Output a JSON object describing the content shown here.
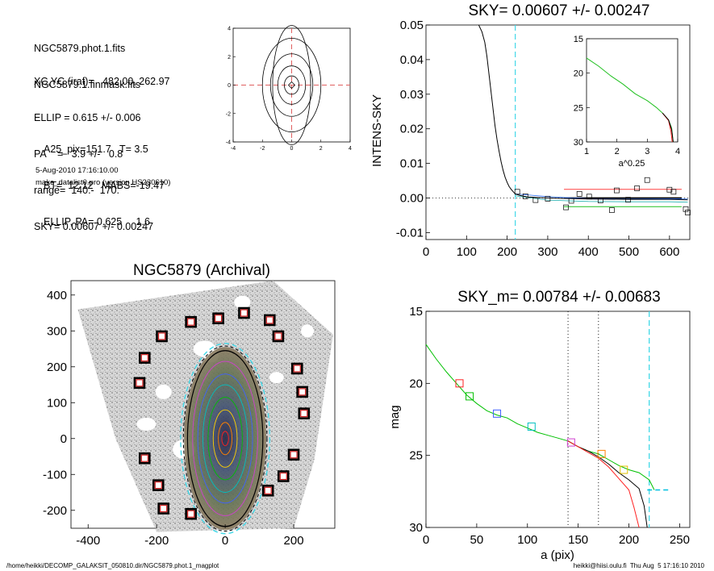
{
  "header_info": {
    "lines_a": [
      "NGC5879.phot.1.fits",
      "NGC5879.1.finmask.fits"
    ],
    "lines_b": [
      "XC,YC (iraf)=   482.00, 262.97",
      "ELLIP = 0.615 +/- 0.006",
      "PA    =   3.9 +/-   0.8",
      "range=  140.-  170.",
      "SKY= 0.00607 +/- 0.00247"
    ],
    "lines_c": [
      "A25_pix=151.7   T= 3.5",
      "BT=  12.12   MABS=-19.47",
      "ELLIP, PA= 0.625     1.6"
    ],
    "timestamp": "5-Aug-2010 17:16:10.00",
    "program": "make_datalist0.pro (version HS230610)"
  },
  "footer": {
    "path": "/home/heikki/DECOMP_GALAKSIT_050810.dir/NGC5879.phot.1_magplot",
    "user_time": "heikki@hiisi.oulu.fi  Thu Aug  5 17:16:10 2010"
  },
  "chart_data": [
    {
      "id": "contour_panel",
      "type": "contour",
      "title": "",
      "xlim": [
        -4,
        4
      ],
      "ylim": [
        -4,
        4
      ],
      "xticks": [
        "-4",
        "-2",
        "0",
        "2",
        "4"
      ],
      "yticks": [
        "-4",
        "-2",
        "0",
        "2",
        "4"
      ],
      "contour_levels_semi_axes": [
        [
          1.3,
          4.2
        ],
        [
          2.0,
          3.3
        ],
        [
          1.45,
          2.2
        ],
        [
          0.95,
          1.35
        ],
        [
          0.5,
          0.65
        ]
      ],
      "center_marker": [
        0,
        0
      ],
      "crosshair_color": "#e06060"
    },
    {
      "id": "sky_panel",
      "type": "line",
      "title": "SKY= 0.00607 +/- 0.00247",
      "xlabel": "",
      "ylabel": "INTENS-SKY",
      "xlim": [
        0,
        650
      ],
      "ylim": [
        -0.012,
        0.05
      ],
      "xticks": [
        "0",
        "100",
        "200",
        "300",
        "400",
        "500",
        "600"
      ],
      "yticks": [
        "-0.01",
        "0.00",
        "0.01",
        "0.02",
        "0.03",
        "0.04",
        "0.05"
      ],
      "profile": {
        "x": [
          130,
          138,
          145,
          150,
          155,
          160,
          165,
          170,
          175,
          180,
          185,
          190,
          195,
          200,
          205,
          210,
          215,
          220,
          230,
          250,
          300,
          400,
          500,
          600,
          645
        ],
        "y": [
          0.05,
          0.048,
          0.045,
          0.041,
          0.036,
          0.031,
          0.026,
          0.021,
          0.017,
          0.0135,
          0.0105,
          0.008,
          0.006,
          0.0045,
          0.0033,
          0.0025,
          0.0018,
          0.0012,
          0.0008,
          0.0003,
          0.0,
          -0.0003,
          -0.0004,
          -0.0004,
          -0.0005
        ]
      },
      "sky_boxes": {
        "x": [
          225,
          245,
          270,
          300,
          345,
          358,
          378,
          402,
          430,
          458,
          470,
          498,
          520,
          545,
          600,
          610,
          640,
          645
        ],
        "y": [
          0.0018,
          0.0005,
          -0.0006,
          -0.0002,
          -0.0027,
          -0.0008,
          0.0012,
          0.0004,
          -0.0007,
          -0.0035,
          0.0022,
          -0.0005,
          0.0028,
          0.0052,
          0.0024,
          0.0018,
          -0.0032,
          -0.0042
        ]
      },
      "sky_mean": 0.0,
      "sky_upper": 0.0025,
      "sky_lower": -0.0025,
      "range_marker_x": 220,
      "inset": {
        "xlabel": "a^0.25",
        "xlim": [
          1,
          4
        ],
        "ylim": [
          15,
          30
        ],
        "xticks": [
          "1",
          "2",
          "3",
          "4"
        ],
        "yticks": [
          "15",
          "20",
          "25",
          "30"
        ],
        "curve_x": [
          1.0,
          1.4,
          1.8,
          2.2,
          2.6,
          3.0,
          3.3,
          3.5,
          3.7,
          3.8,
          3.85
        ],
        "curve_y": [
          17.8,
          19.0,
          20.4,
          21.6,
          23.0,
          24.0,
          25.0,
          25.8,
          26.8,
          28.0,
          30.0
        ]
      }
    },
    {
      "id": "image_panel",
      "type": "image",
      "title": "NGC5879 (Archival)",
      "xlim": [
        -450,
        320
      ],
      "ylim": [
        -250,
        440
      ],
      "xticks": [
        "-400",
        "-200",
        "0",
        "200"
      ],
      "yticks": [
        "400",
        "300",
        "200",
        "100",
        "0",
        "-100",
        "-200"
      ],
      "sky_box_positions": {
        "x": [
          -100,
          -20,
          55,
          130,
          155,
          210,
          225,
          230,
          200,
          170,
          125,
          -185,
          -235,
          -250,
          -235,
          -195,
          -180,
          -100
        ],
        "y": [
          325,
          335,
          350,
          330,
          285,
          195,
          130,
          70,
          -45,
          -105,
          -145,
          285,
          225,
          155,
          -55,
          -130,
          -195,
          -210
        ]
      },
      "ellipse_semi_axes": [
        [
          110,
          245
        ],
        [
          95,
          215
        ],
        [
          80,
          180
        ],
        [
          65,
          150
        ],
        [
          50,
          115
        ],
        [
          35,
          80
        ],
        [
          20,
          45
        ],
        [
          10,
          20
        ]
      ],
      "ellipse_colors": [
        "#000000",
        "#d040d0",
        "#4060ff",
        "#00c0c0",
        "#00c000",
        "#ffd000",
        "#ff8000",
        "#ff2020"
      ]
    },
    {
      "id": "mag_panel",
      "type": "line",
      "title": "SKY_m=  0.00784 +/- 0.00683",
      "xlabel": "a (pix)",
      "ylabel": "mag",
      "xlim": [
        0,
        260
      ],
      "ylim": [
        15,
        30
      ],
      "xticks": [
        "0",
        "50",
        "100",
        "150",
        "200",
        "250"
      ],
      "yticks": [
        "15",
        "20",
        "25",
        "30"
      ],
      "range_lines_x": [
        140,
        170
      ],
      "sky_radius_x": 220,
      "series": [
        {
          "color": "#00c000",
          "x": [
            0,
            10,
            20,
            30,
            40,
            50,
            60,
            70,
            80,
            90,
            100,
            110,
            120,
            130,
            140,
            150,
            160,
            170,
            180,
            190,
            200,
            210,
            220,
            225
          ],
          "y": [
            17.3,
            18.3,
            19.2,
            20.0,
            20.8,
            21.4,
            21.9,
            22.2,
            22.4,
            22.8,
            23.1,
            23.4,
            23.6,
            23.8,
            24.0,
            24.4,
            24.7,
            24.9,
            25.3,
            25.7,
            26.0,
            26.2,
            26.7,
            27.4
          ]
        },
        {
          "color": "#000000",
          "x": [
            140,
            150,
            160,
            170,
            180,
            190,
            200,
            210,
            215,
            218
          ],
          "y": [
            24.0,
            24.4,
            24.7,
            25.1,
            25.6,
            26.2,
            26.7,
            27.3,
            28.5,
            30.0
          ]
        },
        {
          "color": "#ff2020",
          "x": [
            140,
            150,
            160,
            170,
            180,
            190,
            200,
            205,
            210
          ],
          "y": [
            24.0,
            24.4,
            24.8,
            25.2,
            25.8,
            26.6,
            27.4,
            28.6,
            30.0
          ]
        },
        {
          "color": "#00c0e0",
          "x": [
            218,
            240
          ],
          "y": [
            27.4,
            27.4
          ]
        }
      ],
      "marker_boxes": [
        {
          "x": 33,
          "y": 20.0,
          "color": "#ff2020"
        },
        {
          "x": 43,
          "y": 20.9,
          "color": "#00c000"
        },
        {
          "x": 70,
          "y": 22.1,
          "color": "#4060ff"
        },
        {
          "x": 104,
          "y": 23.0,
          "color": "#00c0c0"
        },
        {
          "x": 143,
          "y": 24.1,
          "color": "#d040d0"
        },
        {
          "x": 173,
          "y": 24.9,
          "color": "#ff8000"
        },
        {
          "x": 195,
          "y": 26.0,
          "color": "#e0c000"
        }
      ]
    }
  ]
}
